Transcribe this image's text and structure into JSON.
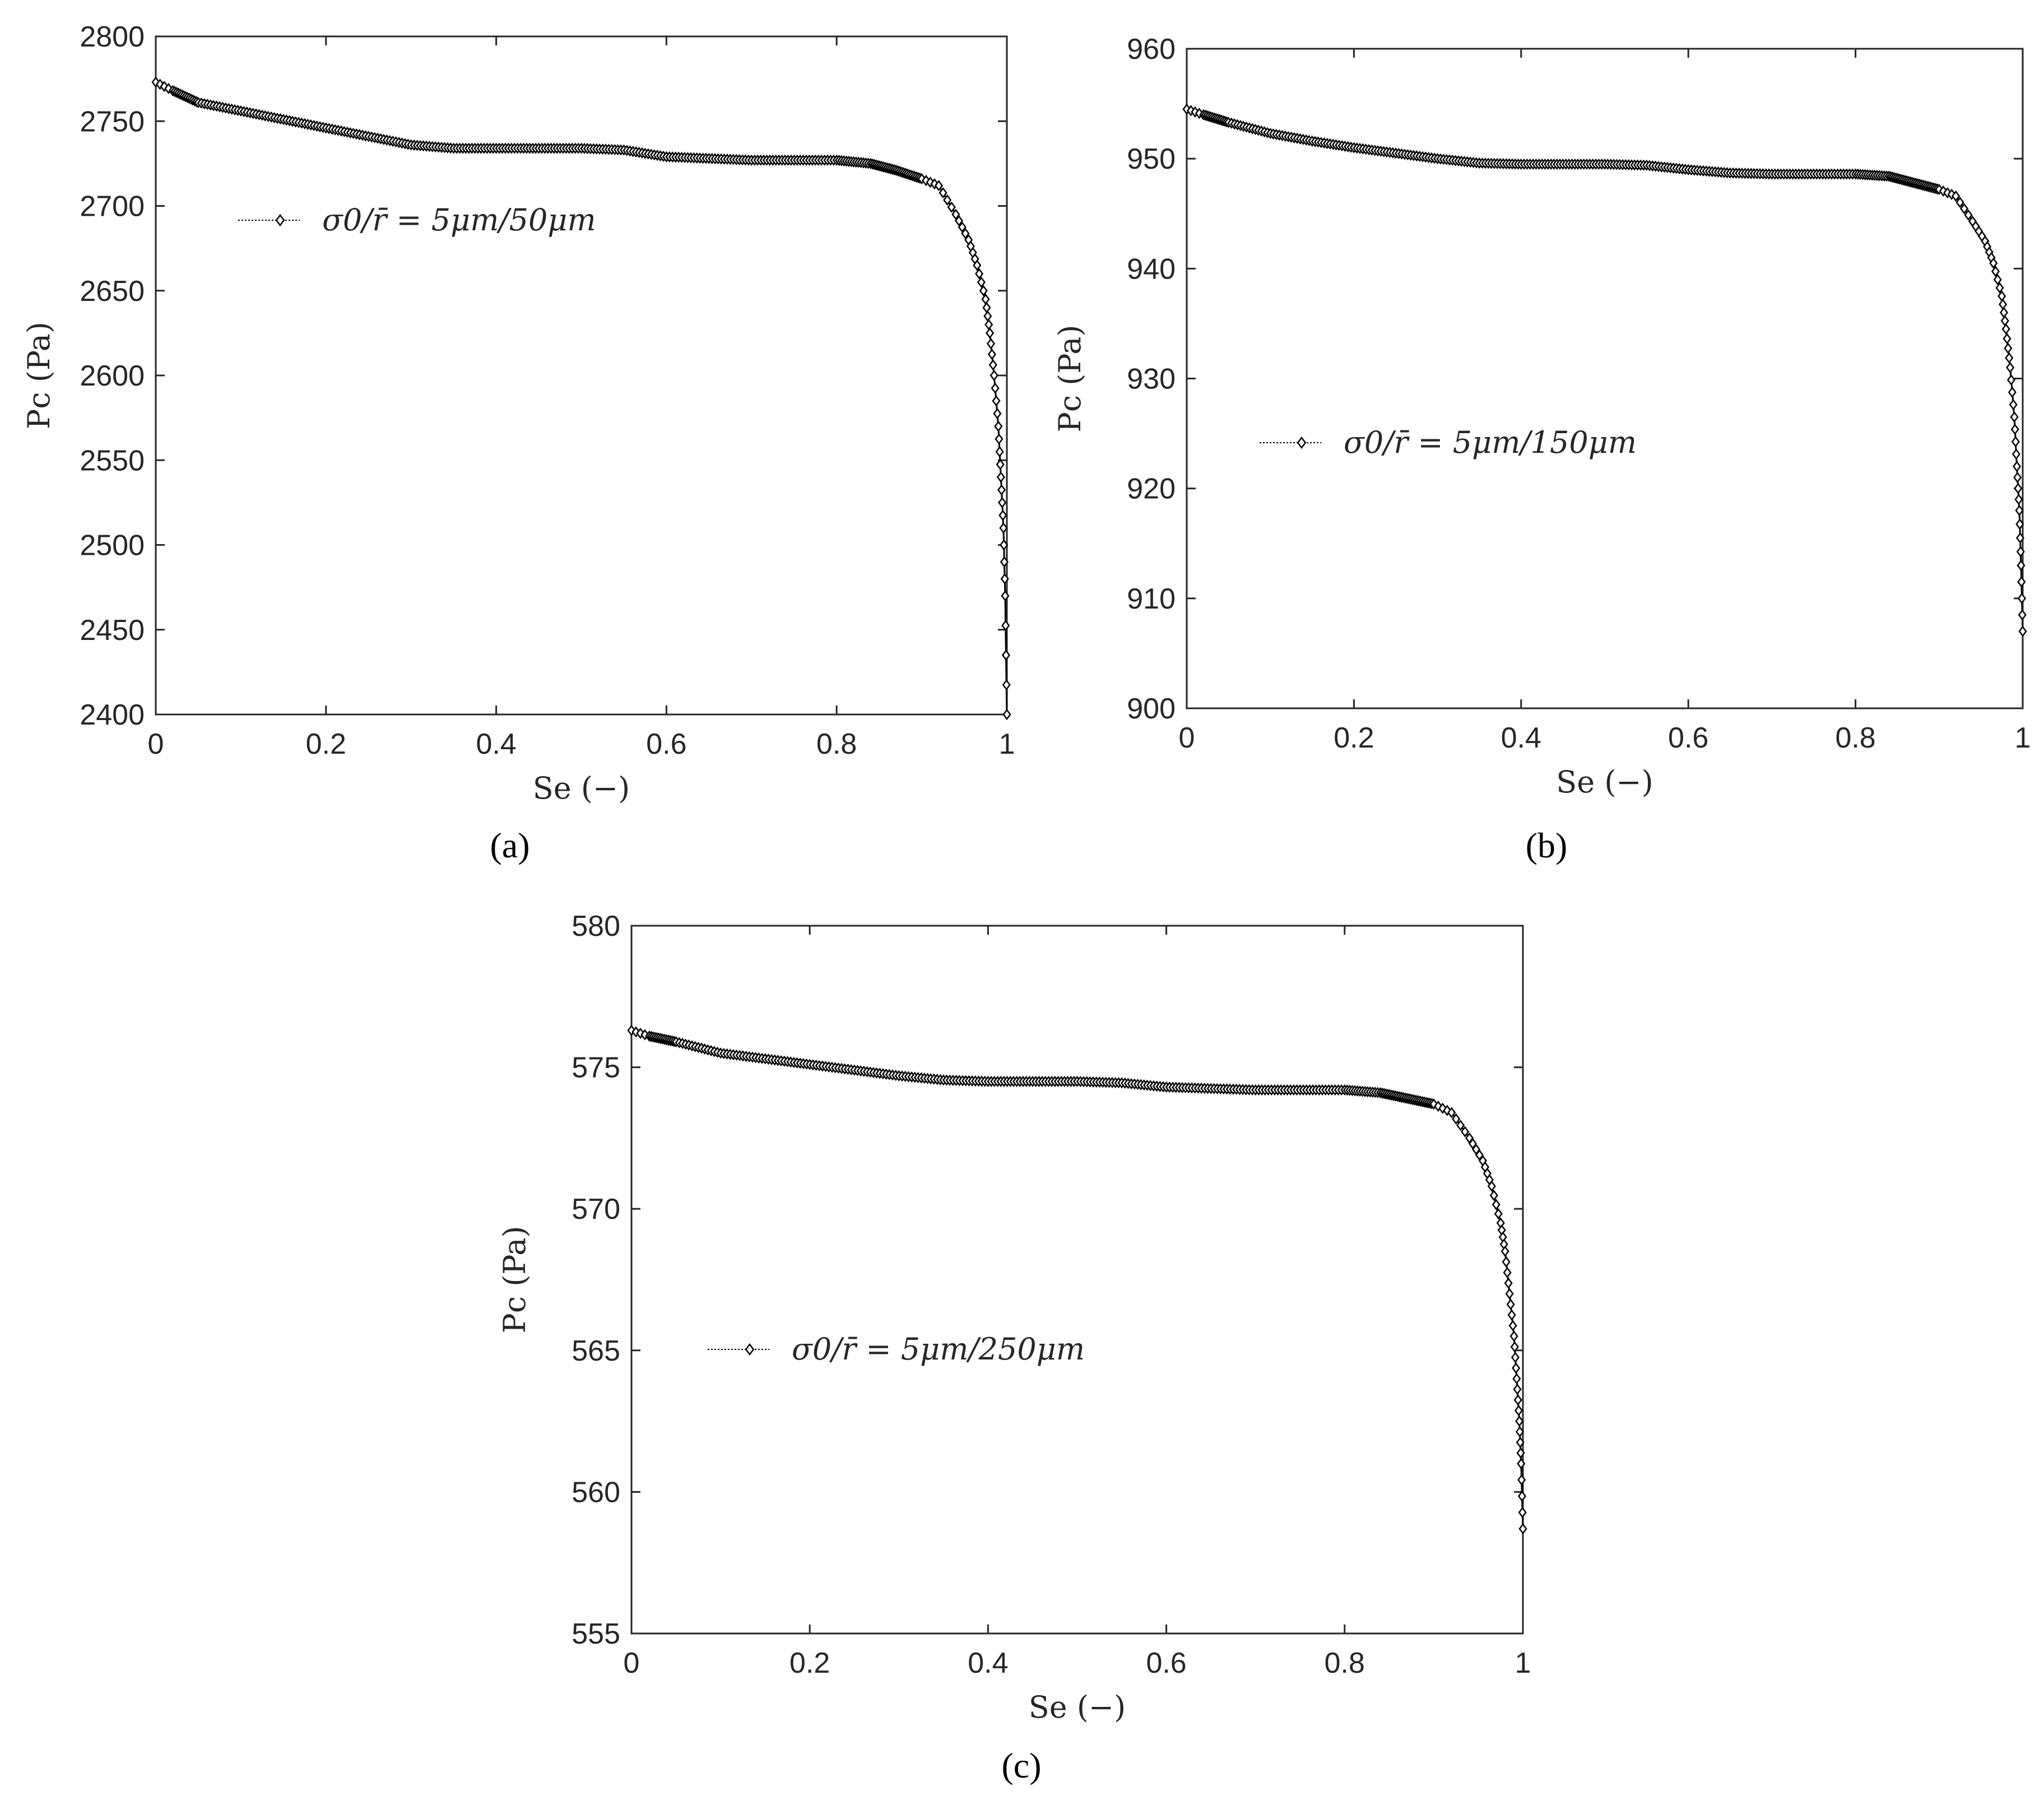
{
  "chart_data": [
    {
      "panel": "(a)",
      "type": "line",
      "xlabel": "Se (−)",
      "ylabel": "Pc (Pa)",
      "xlim": [
        0,
        1
      ],
      "ylim": [
        2400,
        2800
      ],
      "xticks": [
        "0",
        "0.2",
        "0.4",
        "0.6",
        "0.8",
        "1"
      ],
      "yticks": [
        "2400",
        "2450",
        "2500",
        "2550",
        "2600",
        "2650",
        "2700",
        "2750",
        "2800"
      ],
      "legend": "σ0/r̄ = 5μm/50μm",
      "legend_position": "upper-left",
      "marker": "diamond",
      "series": [
        {
          "name": "σ0/r̄ = 5μm/50μm",
          "x": [
            0,
            0.02,
            0.05,
            0.1,
            0.15,
            0.2,
            0.25,
            0.3,
            0.35,
            0.4,
            0.45,
            0.5,
            0.55,
            0.6,
            0.65,
            0.7,
            0.75,
            0.8,
            0.84,
            0.87,
            0.9,
            0.92,
            0.94,
            0.955,
            0.965,
            0.975,
            0.98,
            0.985,
            0.99,
            0.993,
            0.996,
            0.998,
            1.0
          ],
          "y": [
            2773,
            2768,
            2761,
            2756,
            2751,
            2746,
            2741,
            2736,
            2734,
            2734,
            2734,
            2734,
            2733,
            2729,
            2728,
            2727,
            2727,
            2727,
            2725,
            2721,
            2716,
            2712,
            2695,
            2680,
            2665,
            2645,
            2625,
            2600,
            2570,
            2540,
            2510,
            2470,
            2400
          ]
        }
      ]
    },
    {
      "panel": "(b)",
      "type": "line",
      "xlabel": "Se (−)",
      "ylabel": "Pc (Pa)",
      "xlim": [
        0,
        1
      ],
      "ylim": [
        900,
        960
      ],
      "xticks": [
        "0",
        "0.2",
        "0.4",
        "0.6",
        "0.8",
        "1"
      ],
      "yticks": [
        "900",
        "910",
        "920",
        "930",
        "940",
        "950",
        "960"
      ],
      "legend": "σ0/r̄ = 5μm/150μm",
      "legend_position": "middle-left",
      "marker": "diamond",
      "series": [
        {
          "name": "σ0/r̄ = 5μm/150μm",
          "x": [
            0,
            0.02,
            0.05,
            0.1,
            0.15,
            0.2,
            0.25,
            0.3,
            0.35,
            0.4,
            0.45,
            0.5,
            0.55,
            0.6,
            0.65,
            0.7,
            0.75,
            0.8,
            0.84,
            0.87,
            0.9,
            0.92,
            0.94,
            0.955,
            0.965,
            0.975,
            0.98,
            0.985,
            0.99,
            0.993,
            0.996,
            0.998,
            1.0
          ],
          "y": [
            954.5,
            954.0,
            953.3,
            952.3,
            951.6,
            951.0,
            950.5,
            950.0,
            949.6,
            949.5,
            949.5,
            949.5,
            949.4,
            949.0,
            948.7,
            948.6,
            948.6,
            948.6,
            948.4,
            947.8,
            947.2,
            946.6,
            944.3,
            942.5,
            940.5,
            937.5,
            934.5,
            931.0,
            926.5,
            922.0,
            918.0,
            913.0,
            907.0
          ]
        }
      ]
    },
    {
      "panel": "(c)",
      "type": "line",
      "xlabel": "Se (−)",
      "ylabel": "Pc (Pa)",
      "xlim": [
        0,
        1
      ],
      "ylim": [
        555,
        580
      ],
      "xticks": [
        "0",
        "0.2",
        "0.4",
        "0.6",
        "0.8",
        "1"
      ],
      "yticks": [
        "555",
        "560",
        "565",
        "570",
        "575",
        "580"
      ],
      "legend": "σ0/r̄ = 5μm/250μm",
      "legend_position": "lower-left",
      "marker": "diamond",
      "series": [
        {
          "name": "σ0/r̄ = 5μm/250μm",
          "x": [
            0,
            0.02,
            0.05,
            0.1,
            0.15,
            0.2,
            0.25,
            0.3,
            0.35,
            0.4,
            0.45,
            0.5,
            0.55,
            0.6,
            0.65,
            0.7,
            0.75,
            0.8,
            0.84,
            0.87,
            0.9,
            0.92,
            0.94,
            0.955,
            0.965,
            0.975,
            0.98,
            0.985,
            0.99,
            0.993,
            0.996,
            0.998,
            1.0
          ],
          "y": [
            576.3,
            576.1,
            575.9,
            575.5,
            575.3,
            575.1,
            574.9,
            574.7,
            574.55,
            574.5,
            574.5,
            574.5,
            574.45,
            574.3,
            574.25,
            574.2,
            574.2,
            574.2,
            574.1,
            573.9,
            573.7,
            573.4,
            572.5,
            571.7,
            570.8,
            569.5,
            568.5,
            567.0,
            565.5,
            564.0,
            562.5,
            561.0,
            558.7
          ]
        }
      ]
    }
  ]
}
